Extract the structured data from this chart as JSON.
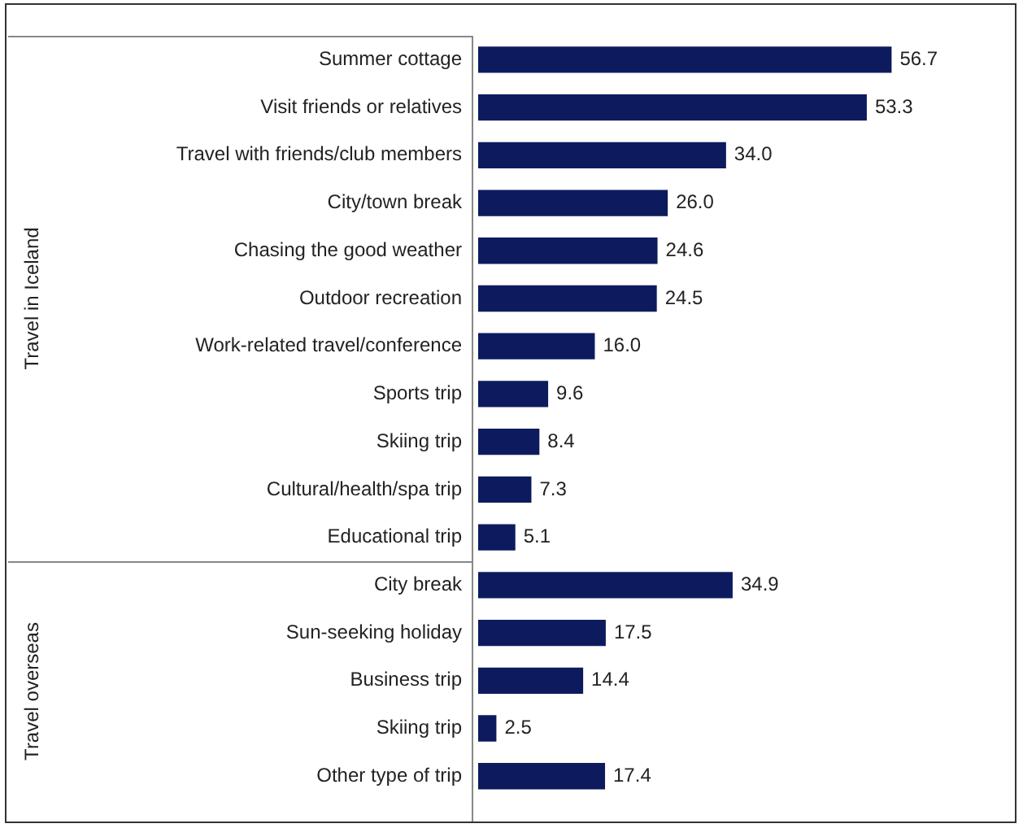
{
  "chart_data": {
    "type": "bar",
    "orientation": "horizontal",
    "categories": [
      "Summer cottage",
      "Visit friends or relatives",
      "Travel with friends/club members",
      "City/town break",
      "Chasing the good weather",
      "Outdoor recreation",
      "Work-related travel/conference",
      "Sports trip",
      "Skiing trip",
      "Cultural/health/spa trip",
      "Educational trip",
      "City break",
      "Sun-seeking holiday",
      "Business trip",
      "Skiing trip",
      "Other type of trip"
    ],
    "values": [
      56.7,
      53.3,
      34.0,
      26.0,
      24.6,
      24.5,
      16.0,
      9.6,
      8.4,
      7.3,
      5.1,
      34.9,
      17.5,
      14.4,
      2.5,
      17.4
    ],
    "value_labels": [
      "56.7",
      "53.3",
      "34.0",
      "26.0",
      "24.6",
      "24.5",
      "16.0",
      "9.6",
      "8.4",
      "7.3",
      "5.1",
      "34.9",
      "17.5",
      "14.4",
      "2.5",
      "17.4"
    ],
    "color": "#0d1b5e",
    "grid": false,
    "legend": false,
    "annotations": [
      "Travel in Iceland",
      "Travel overseas"
    ]
  }
}
